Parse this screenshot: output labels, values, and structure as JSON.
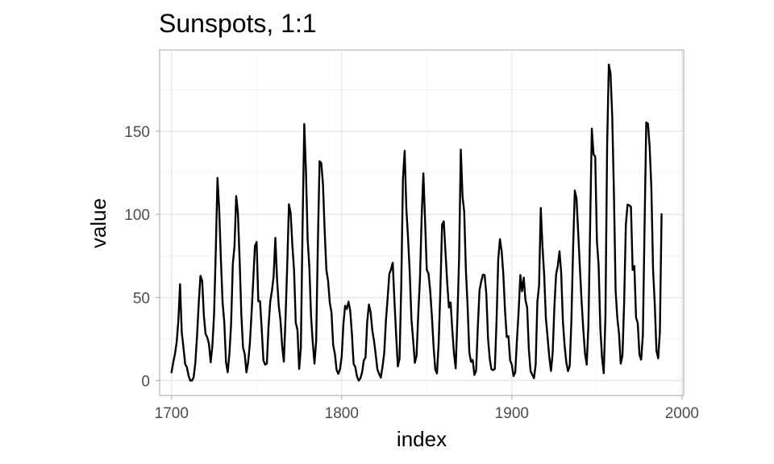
{
  "chart_data": {
    "type": "line",
    "title": "Sunspots, 1:1",
    "xlabel": "index",
    "ylabel": "value",
    "xlim": [
      1693,
      2001
    ],
    "ylim": [
      -9,
      199
    ],
    "x_ticks": [
      1700,
      1800,
      1900,
      2000
    ],
    "x_tick_labels": [
      "1700",
      "1800",
      "1900",
      "2000"
    ],
    "y_ticks": [
      0,
      50,
      100,
      150
    ],
    "y_tick_labels": [
      "0",
      "50",
      "100",
      "150"
    ],
    "x_minor_ticks": [
      1750,
      1850,
      1950
    ],
    "y_minor_ticks": [
      25,
      75,
      125,
      175
    ],
    "grid": true,
    "legend": "none",
    "line_color": "#000000",
    "series": [
      {
        "x": [
          1700,
          1701,
          1702,
          1703,
          1704,
          1705,
          1706,
          1707,
          1708,
          1709,
          1710,
          1711,
          1712,
          1713,
          1714,
          1715,
          1716,
          1717,
          1718,
          1719,
          1720,
          1721,
          1722,
          1723,
          1724,
          1725,
          1726,
          1727,
          1728,
          1729,
          1730,
          1731,
          1732,
          1733,
          1734,
          1735,
          1736,
          1737,
          1738,
          1739,
          1740,
          1741,
          1742,
          1743,
          1744,
          1745,
          1746,
          1747,
          1748,
          1749,
          1750,
          1751,
          1752,
          1753,
          1754,
          1755,
          1756,
          1757,
          1758,
          1759,
          1760,
          1761,
          1762,
          1763,
          1764,
          1765,
          1766,
          1767,
          1768,
          1769,
          1770,
          1771,
          1772,
          1773,
          1774,
          1775,
          1776,
          1777,
          1778,
          1779,
          1780,
          1781,
          1782,
          1783,
          1784,
          1785,
          1786,
          1787,
          1788,
          1789,
          1790,
          1791,
          1792,
          1793,
          1794,
          1795,
          1796,
          1797,
          1798,
          1799,
          1800,
          1801,
          1802,
          1803,
          1804,
          1805,
          1806,
          1807,
          1808,
          1809,
          1810,
          1811,
          1812,
          1813,
          1814,
          1815,
          1816,
          1817,
          1818,
          1819,
          1820,
          1821,
          1822,
          1823,
          1824,
          1825,
          1826,
          1827,
          1828,
          1829,
          1830,
          1831,
          1832,
          1833,
          1834,
          1835,
          1836,
          1837,
          1838,
          1839,
          1840,
          1841,
          1842,
          1843,
          1844,
          1845,
          1846,
          1847,
          1848,
          1849,
          1850,
          1851,
          1852,
          1853,
          1854,
          1855,
          1856,
          1857,
          1858,
          1859,
          1860,
          1861,
          1862,
          1863,
          1864,
          1865,
          1866,
          1867,
          1868,
          1869,
          1870,
          1871,
          1872,
          1873,
          1874,
          1875,
          1876,
          1877,
          1878,
          1879,
          1880,
          1881,
          1882,
          1883,
          1884,
          1885,
          1886,
          1887,
          1888,
          1889,
          1890,
          1891,
          1892,
          1893,
          1894,
          1895,
          1896,
          1897,
          1898,
          1899,
          1900,
          1901,
          1902,
          1903,
          1904,
          1905,
          1906,
          1907,
          1908,
          1909,
          1910,
          1911,
          1912,
          1913,
          1914,
          1915,
          1916,
          1917,
          1918,
          1919,
          1920,
          1921,
          1922,
          1923,
          1924,
          1925,
          1926,
          1927,
          1928,
          1929,
          1930,
          1931,
          1932,
          1933,
          1934,
          1935,
          1936,
          1937,
          1938,
          1939,
          1940,
          1941,
          1942,
          1943,
          1944,
          1945,
          1946,
          1947,
          1948,
          1949,
          1950,
          1951,
          1952,
          1953,
          1954,
          1955,
          1956,
          1957,
          1958,
          1959,
          1960,
          1961,
          1962,
          1963,
          1964,
          1965,
          1966,
          1967,
          1968,
          1969,
          1970,
          1971,
          1972,
          1973,
          1974,
          1975,
          1976,
          1977,
          1978,
          1979,
          1980,
          1981,
          1982,
          1983,
          1984,
          1985,
          1986,
          1987,
          1988
        ],
        "values": [
          5,
          11,
          16,
          23,
          36,
          58,
          29,
          20,
          10,
          8,
          3,
          0,
          0,
          2,
          11,
          27,
          47,
          63,
          60,
          39,
          28,
          26,
          22,
          11,
          21,
          40,
          78,
          122,
          103,
          73,
          47,
          35,
          11,
          5,
          16,
          34,
          70,
          81,
          111,
          101,
          73,
          40,
          20,
          16,
          5,
          11,
          22,
          40,
          60,
          80.9,
          83.4,
          47.7,
          47.8,
          30.7,
          12.2,
          9.6,
          10.2,
          32.4,
          47.6,
          54,
          62.9,
          85.9,
          61.2,
          45.1,
          36.4,
          20.9,
          11.4,
          37.8,
          69.8,
          106.1,
          100.8,
          81.6,
          66.5,
          34.8,
          30.6,
          7,
          19.8,
          92.5,
          154.4,
          125.9,
          84.8,
          68.1,
          38.5,
          22.8,
          10.2,
          24.1,
          82.9,
          132,
          130.9,
          118.1,
          89.9,
          66.6,
          60,
          46.9,
          41,
          21.3,
          16,
          6.4,
          4.1,
          6.8,
          14.5,
          34,
          45,
          43.1,
          47.5,
          42.2,
          28.1,
          10.1,
          8.1,
          2.5,
          0,
          1.4,
          5,
          12.2,
          13.9,
          35.4,
          45.8,
          41.1,
          30.1,
          23.9,
          15.6,
          6.6,
          4,
          1.8,
          8.5,
          16.6,
          36.3,
          49.6,
          64.2,
          67,
          70.9,
          47.8,
          27.5,
          8.5,
          13.2,
          56.9,
          121.5,
          138.3,
          103.2,
          85.7,
          64.6,
          36.7,
          24.2,
          10.7,
          15,
          40.1,
          61.5,
          98.5,
          124.7,
          96.3,
          66.6,
          64.5,
          54.1,
          39,
          20.6,
          6.7,
          4.3,
          22.7,
          54.8,
          93.8,
          95.8,
          77.2,
          59.1,
          44,
          47,
          30.5,
          16.3,
          7.3,
          37.6,
          74,
          139,
          111.2,
          101.6,
          66.2,
          44.7,
          17,
          11.3,
          12.4,
          3.4,
          6,
          32.3,
          54.3,
          59.7,
          63.7,
          63.5,
          52.2,
          25.4,
          13.1,
          6.8,
          6.3,
          7.1,
          35.6,
          73,
          85.1,
          78,
          64,
          41.8,
          26.2,
          26.7,
          12.1,
          9.5,
          2.7,
          5,
          24.4,
          42,
          63.5,
          53.8,
          62,
          48.5,
          43.9,
          18.6,
          5.7,
          3.6,
          1.4,
          9.6,
          47.4,
          57.1,
          103.9,
          80.6,
          63.6,
          37.6,
          26.1,
          14.2,
          5.8,
          16.7,
          44.3,
          63.9,
          69,
          77.8,
          64.9,
          35.7,
          21.2,
          11.1,
          5.7,
          8.7,
          36.1,
          79.7,
          114.4,
          109.6,
          88.8,
          67.8,
          47.5,
          30.6,
          16.3,
          9.6,
          33.2,
          92.6,
          151.6,
          136.3,
          134.7,
          83.9,
          69.4,
          31.5,
          13.9,
          4.4,
          38,
          141.7,
          190.2,
          184.8,
          159,
          112.3,
          53.9,
          37.6,
          27.9,
          10.2,
          15.1,
          47,
          93.8,
          105.9,
          105.5,
          104.5,
          66.6,
          68.9,
          38,
          34.5,
          15.5,
          12.6,
          27.5,
          92.5,
          155.4,
          154.6,
          140.4,
          115.9,
          66.6,
          45.9,
          17.9,
          13.4,
          29.2,
          100.2
        ]
      }
    ]
  }
}
